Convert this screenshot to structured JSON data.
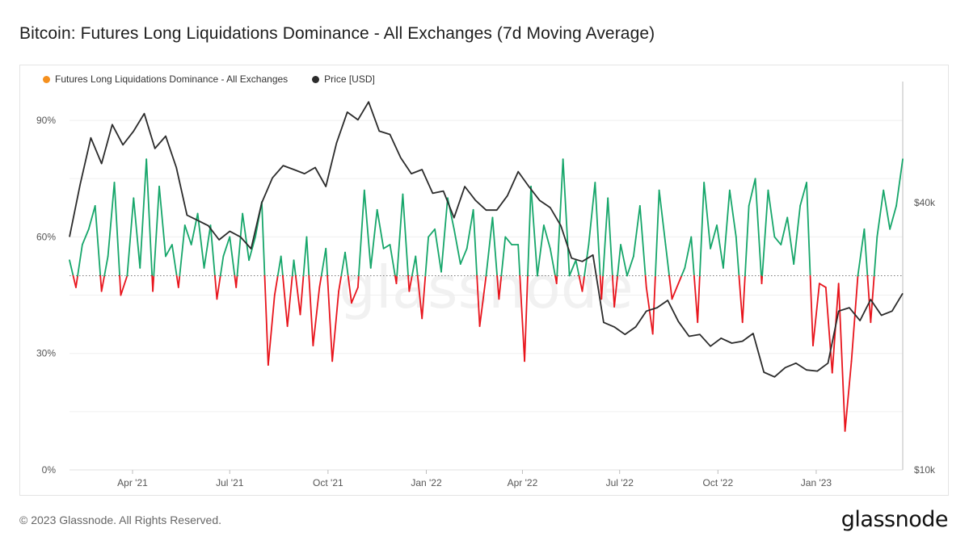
{
  "title": "Bitcoin: Futures Long Liquidations Dominance - All Exchanges (7d Moving Average)",
  "footer": {
    "copyright": "© 2023 Glassnode. All Rights Reserved.",
    "logo": "glassnode",
    "watermark": "glassnode"
  },
  "colors": {
    "above_threshold": "#16a66a",
    "below_threshold": "#e8141c",
    "price": "#2b2b2b",
    "legend_dominance": "#f5901e"
  },
  "chart_data": {
    "type": "line",
    "title": "Bitcoin: Futures Long Liquidations Dominance - All Exchanges (7d Moving Average)",
    "legend": [
      "Futures Long Liquidations Dominance - All Exchanges",
      "Price [USD]"
    ],
    "legend_placement": "top-left",
    "x_ticks": [
      "Apr '21",
      "Jul '21",
      "Oct '21",
      "Jan '22",
      "Apr '22",
      "Jul '22",
      "Oct '22",
      "Jan '23"
    ],
    "x_range": [
      "2021-02-01",
      "2023-03-23"
    ],
    "y_left": {
      "ticks": [
        "0%",
        "30%",
        "60%",
        "90%"
      ],
      "tick_values": [
        0,
        30,
        60,
        90
      ],
      "range": [
        0,
        100
      ]
    },
    "y_right": {
      "ticks": [
        "$10k",
        "$40k"
      ],
      "tick_values": [
        10000,
        40000
      ],
      "scale": "log",
      "range": [
        10000,
        75000
      ]
    },
    "threshold": 50,
    "grid": "horizontal",
    "series": [
      {
        "name": "Futures Long Liquidations Dominance - All Exchanges",
        "axis": "left",
        "x": [
          "2021-02-01",
          "2021-02-07",
          "2021-02-13",
          "2021-02-19",
          "2021-02-25",
          "2021-03-03",
          "2021-03-09",
          "2021-03-15",
          "2021-03-21",
          "2021-03-27",
          "2021-04-02",
          "2021-04-08",
          "2021-04-14",
          "2021-04-20",
          "2021-04-26",
          "2021-05-02",
          "2021-05-08",
          "2021-05-14",
          "2021-05-20",
          "2021-05-26",
          "2021-06-01",
          "2021-06-07",
          "2021-06-13",
          "2021-06-19",
          "2021-06-25",
          "2021-07-01",
          "2021-07-07",
          "2021-07-13",
          "2021-07-19",
          "2021-07-25",
          "2021-07-31",
          "2021-08-06",
          "2021-08-12",
          "2021-08-18",
          "2021-08-24",
          "2021-08-30",
          "2021-09-05",
          "2021-09-11",
          "2021-09-17",
          "2021-09-23",
          "2021-09-29",
          "2021-10-05",
          "2021-10-11",
          "2021-10-17",
          "2021-10-23",
          "2021-10-29",
          "2021-11-04",
          "2021-11-10",
          "2021-11-16",
          "2021-11-22",
          "2021-11-28",
          "2021-12-04",
          "2021-12-10",
          "2021-12-16",
          "2021-12-22",
          "2021-12-28",
          "2022-01-03",
          "2022-01-09",
          "2022-01-15",
          "2022-01-21",
          "2022-01-27",
          "2022-02-02",
          "2022-02-08",
          "2022-02-14",
          "2022-02-20",
          "2022-02-26",
          "2022-03-04",
          "2022-03-10",
          "2022-03-16",
          "2022-03-22",
          "2022-03-28",
          "2022-04-03",
          "2022-04-09",
          "2022-04-15",
          "2022-04-21",
          "2022-04-27",
          "2022-05-03",
          "2022-05-09",
          "2022-05-15",
          "2022-05-21",
          "2022-05-27",
          "2022-06-02",
          "2022-06-08",
          "2022-06-14",
          "2022-06-20",
          "2022-06-26",
          "2022-07-02",
          "2022-07-08",
          "2022-07-14",
          "2022-07-20",
          "2022-07-26",
          "2022-08-01",
          "2022-08-07",
          "2022-08-13",
          "2022-08-19",
          "2022-08-25",
          "2022-08-31",
          "2022-09-06",
          "2022-09-12",
          "2022-09-18",
          "2022-09-24",
          "2022-09-30",
          "2022-10-06",
          "2022-10-12",
          "2022-10-18",
          "2022-10-24",
          "2022-10-30",
          "2022-11-05",
          "2022-11-11",
          "2022-11-17",
          "2022-11-23",
          "2022-11-29",
          "2022-12-05",
          "2022-12-11",
          "2022-12-17",
          "2022-12-23",
          "2022-12-29",
          "2023-01-04",
          "2023-01-10",
          "2023-01-16",
          "2023-01-22",
          "2023-01-28",
          "2023-02-03",
          "2023-02-09",
          "2023-02-15",
          "2023-02-21",
          "2023-02-27",
          "2023-03-05",
          "2023-03-11",
          "2023-03-17",
          "2023-03-23"
        ],
        "values": [
          54,
          47,
          58,
          62,
          68,
          46,
          55,
          74,
          45,
          50,
          70,
          52,
          80,
          46,
          73,
          55,
          58,
          47,
          63,
          58,
          66,
          52,
          63,
          44,
          55,
          60,
          47,
          66,
          54,
          60,
          69,
          27,
          45,
          55,
          37,
          54,
          40,
          60,
          32,
          47,
          57,
          28,
          46,
          56,
          43,
          47,
          72,
          52,
          67,
          57,
          58,
          48,
          71,
          46,
          55,
          39,
          60,
          62,
          51,
          70,
          62,
          53,
          57,
          67,
          37,
          50,
          65,
          44,
          60,
          58,
          58,
          28,
          73,
          50,
          63,
          57,
          48,
          80,
          50,
          54,
          46,
          58,
          74,
          44,
          70,
          42,
          58,
          50,
          55,
          68,
          47,
          35,
          72,
          58,
          44,
          48,
          52,
          60,
          38,
          74,
          57,
          63,
          52,
          72,
          60,
          38,
          68,
          75,
          48,
          72,
          60,
          58,
          65,
          53,
          68,
          74,
          32,
          48,
          47,
          25,
          48,
          10,
          28,
          50,
          62,
          38,
          60,
          72,
          62,
          68,
          80
        ]
      },
      {
        "name": "Price [USD]",
        "axis": "right",
        "x": [
          "2021-02-01",
          "2021-02-11",
          "2021-02-21",
          "2021-03-03",
          "2021-03-13",
          "2021-03-23",
          "2021-04-02",
          "2021-04-12",
          "2021-04-22",
          "2021-05-02",
          "2021-05-12",
          "2021-05-22",
          "2021-06-01",
          "2021-06-11",
          "2021-06-21",
          "2021-07-01",
          "2021-07-11",
          "2021-07-21",
          "2021-07-31",
          "2021-08-10",
          "2021-08-20",
          "2021-08-30",
          "2021-09-09",
          "2021-09-19",
          "2021-09-29",
          "2021-10-09",
          "2021-10-19",
          "2021-10-29",
          "2021-11-08",
          "2021-11-18",
          "2021-11-28",
          "2021-12-08",
          "2021-12-18",
          "2021-12-28",
          "2022-01-07",
          "2022-01-17",
          "2022-01-27",
          "2022-02-06",
          "2022-02-16",
          "2022-02-26",
          "2022-03-08",
          "2022-03-18",
          "2022-03-28",
          "2022-04-07",
          "2022-04-17",
          "2022-04-27",
          "2022-05-07",
          "2022-05-17",
          "2022-05-27",
          "2022-06-06",
          "2022-06-16",
          "2022-06-26",
          "2022-07-06",
          "2022-07-16",
          "2022-07-26",
          "2022-08-05",
          "2022-08-15",
          "2022-08-25",
          "2022-09-04",
          "2022-09-14",
          "2022-09-24",
          "2022-10-04",
          "2022-10-14",
          "2022-10-24",
          "2022-11-03",
          "2022-11-13",
          "2022-11-23",
          "2022-12-03",
          "2022-12-13",
          "2022-12-23",
          "2023-01-02",
          "2023-01-12",
          "2023-01-22",
          "2023-02-01",
          "2023-02-11",
          "2023-02-21",
          "2023-03-03",
          "2023-03-13",
          "2023-03-23"
        ],
        "values": [
          33500,
          44000,
          56000,
          49000,
          60000,
          54000,
          58000,
          63500,
          53000,
          56500,
          48000,
          37500,
          36500,
          35500,
          33000,
          34500,
          33500,
          31500,
          40000,
          45500,
          48500,
          47500,
          46500,
          48000,
          43500,
          54500,
          64000,
          61500,
          67500,
          58000,
          57000,
          50500,
          46500,
          47500,
          42000,
          42500,
          37000,
          43500,
          40500,
          38500,
          38500,
          41500,
          47000,
          43500,
          40500,
          39000,
          35500,
          30000,
          29500,
          30500,
          21500,
          21000,
          20200,
          21000,
          22800,
          23200,
          24100,
          21600,
          20000,
          20200,
          19000,
          19800,
          19300,
          19500,
          20300,
          16600,
          16200,
          17000,
          17400,
          16800,
          16700,
          17400,
          22800,
          23200,
          21700,
          24200,
          22300,
          22800,
          25000
        ]
      }
    ]
  }
}
